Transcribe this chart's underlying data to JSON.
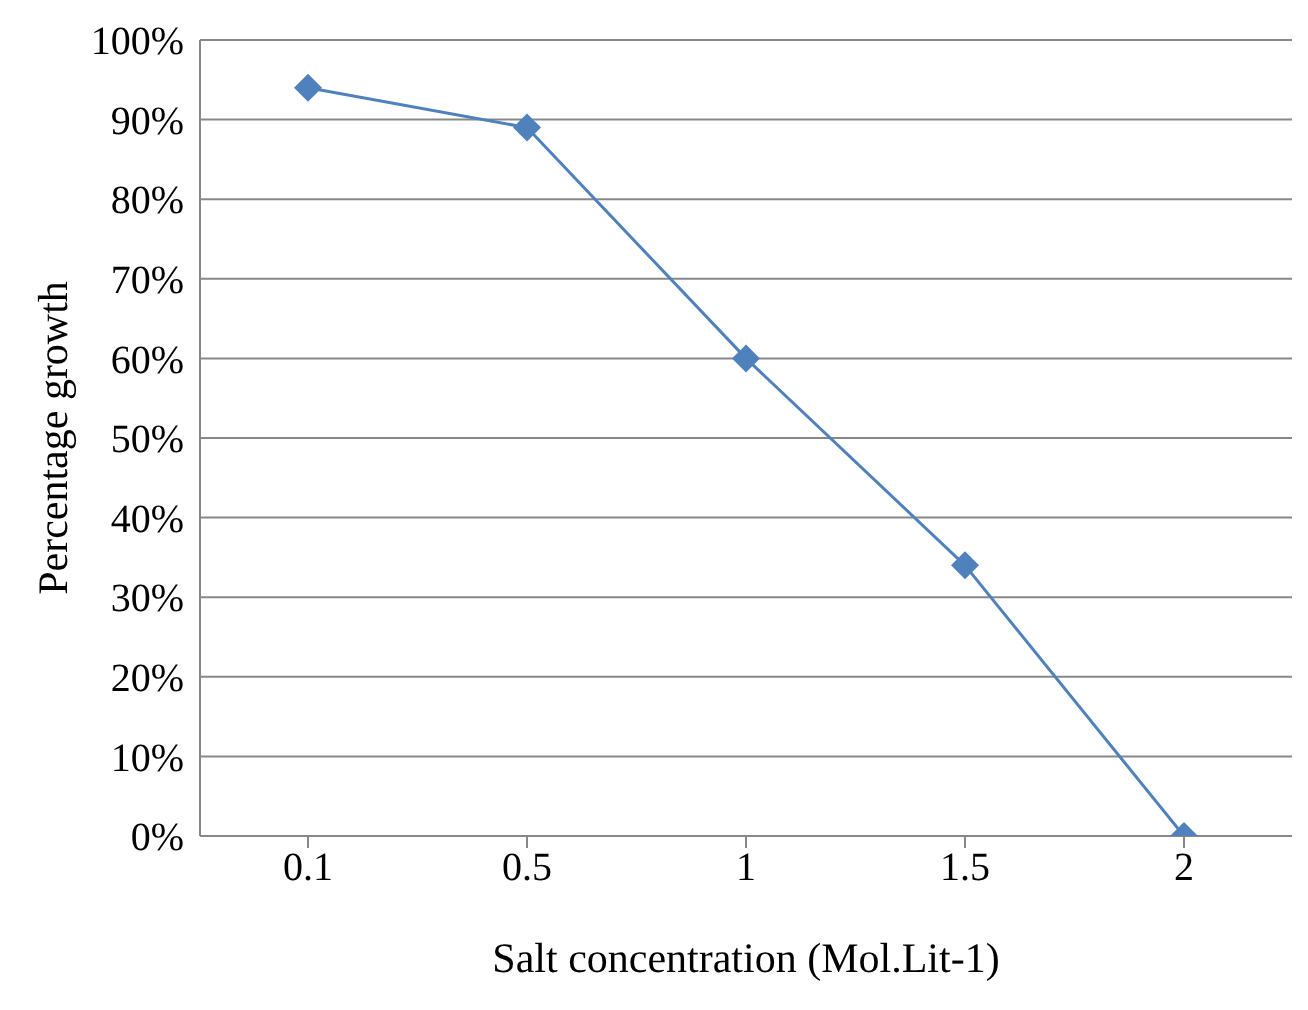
{
  "chart_data": {
    "type": "line",
    "xlabel": "Salt concentration (Mol.Lit-1)",
    "ylabel": "Percentage growth",
    "categories": [
      "0.1",
      "0.5",
      "1",
      "1.5",
      "2"
    ],
    "series": [
      {
        "color": "#4f81bd",
        "values": [
          94,
          89,
          60,
          34,
          0
        ]
      }
    ],
    "ylim": [
      0,
      100
    ],
    "yticks": [
      {
        "value": 0,
        "label": "0%"
      },
      {
        "value": 10,
        "label": "10%"
      },
      {
        "value": 20,
        "label": "20%"
      },
      {
        "value": 30,
        "label": "30%"
      },
      {
        "value": 40,
        "label": "40%"
      },
      {
        "value": 50,
        "label": "50%"
      },
      {
        "value": 60,
        "label": "60%"
      },
      {
        "value": 70,
        "label": "70%"
      },
      {
        "value": 80,
        "label": "80%"
      },
      {
        "value": 90,
        "label": "90%"
      },
      {
        "value": 100,
        "label": "100%"
      }
    ],
    "grid": "y",
    "marker": "diamond",
    "line_style": "solid",
    "legend": false
  }
}
